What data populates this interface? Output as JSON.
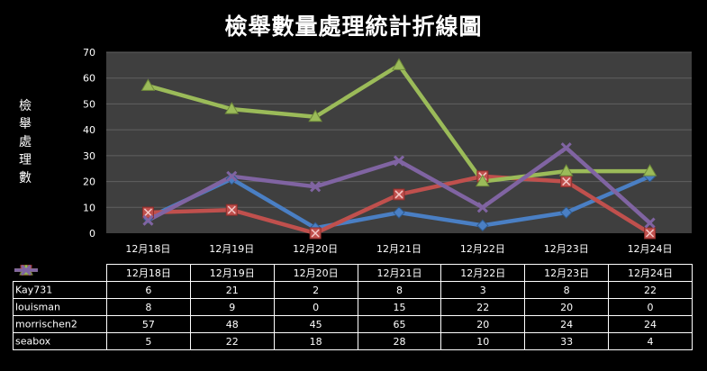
{
  "chart_data": {
    "type": "line",
    "title": "檢舉數量處理統計折線圖",
    "ylabel": "檢舉處理數",
    "xlabel": "",
    "categories": [
      "12月18日",
      "12月19日",
      "12月20日",
      "12月21日",
      "12月22日",
      "12月23日",
      "12月24日"
    ],
    "ylim": [
      0,
      70
    ],
    "yticks": [
      0,
      10,
      20,
      30,
      40,
      50,
      60,
      70
    ],
    "grid": true,
    "legend": "data-table",
    "series": [
      {
        "name": "Kay731",
        "values": [
          6,
          21,
          2,
          8,
          3,
          8,
          22
        ],
        "color": "#4a7fc4",
        "marker": "diamond"
      },
      {
        "name": "louisman",
        "values": [
          8,
          9,
          0,
          15,
          22,
          20,
          0
        ],
        "color": "#c0504d",
        "marker": "square-x"
      },
      {
        "name": "morrischen2",
        "values": [
          57,
          48,
          45,
          65,
          20,
          24,
          24
        ],
        "color": "#9bbb59",
        "marker": "triangle"
      },
      {
        "name": "seabox",
        "values": [
          5,
          22,
          18,
          28,
          10,
          33,
          4
        ],
        "color": "#8064a2",
        "marker": "x"
      }
    ],
    "colors": {
      "plot_background": "#3f3f3f",
      "gridline": "#606060",
      "background": "#000000"
    }
  }
}
